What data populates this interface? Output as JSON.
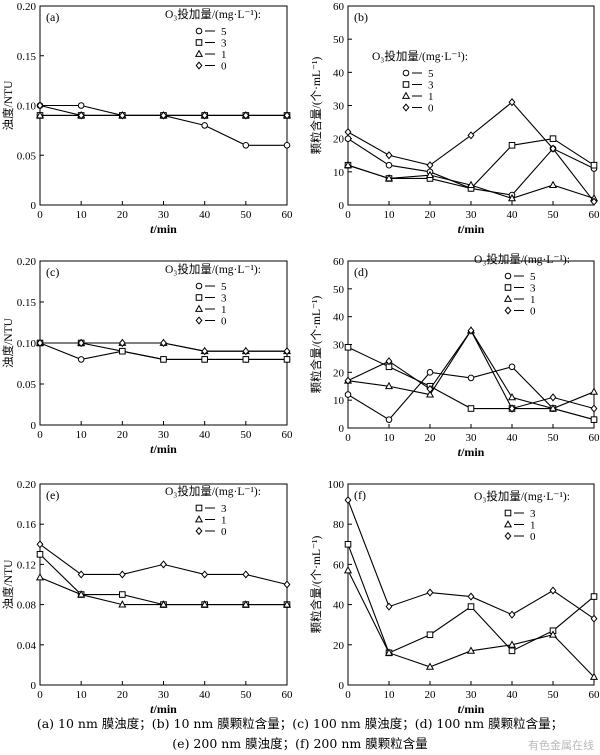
{
  "chart_data": [
    {
      "type": "line",
      "panel_label": "(a)",
      "ylabel": "浊度/NTU",
      "xlabel": "t/min",
      "ylim": [
        0,
        0.2
      ],
      "yticks": [
        "0",
        "0.05",
        "0.10",
        "0.15",
        "0.20"
      ],
      "ytick_values": [
        0,
        0.05,
        0.1,
        0.15,
        0.2
      ],
      "xlim": [
        0,
        60
      ],
      "xticks": [
        "0",
        "10",
        "20",
        "30",
        "40",
        "50",
        "60"
      ],
      "legend_title": "O₃投加量/(mg·L⁻¹):",
      "series": [
        {
          "name": "5",
          "marker": "circle",
          "x": [
            0,
            10,
            20,
            30,
            40,
            50,
            60
          ],
          "y": [
            0.1,
            0.1,
            0.09,
            0.09,
            0.08,
            0.06,
            0.06
          ]
        },
        {
          "name": "3",
          "marker": "square",
          "x": [
            0,
            10,
            20,
            30,
            40,
            50,
            60
          ],
          "y": [
            0.09,
            0.09,
            0.09,
            0.09,
            0.09,
            0.09,
            0.09
          ]
        },
        {
          "name": "1",
          "marker": "triangle",
          "x": [
            0,
            10,
            20,
            30,
            40,
            50,
            60
          ],
          "y": [
            0.09,
            0.09,
            0.09,
            0.09,
            0.09,
            0.09,
            0.09
          ]
        },
        {
          "name": "0",
          "marker": "diamond",
          "x": [
            0,
            10,
            20,
            30,
            40,
            50,
            60
          ],
          "y": [
            0.1,
            0.09,
            0.09,
            0.09,
            0.09,
            0.09,
            0.09
          ]
        }
      ]
    },
    {
      "type": "line",
      "panel_label": "(b)",
      "ylabel": "颗粒含量/(个·mL⁻¹)",
      "xlabel": "t/min",
      "ylim": [
        0,
        60
      ],
      "yticks": [
        "0",
        "10",
        "20",
        "30",
        "40",
        "50",
        "60"
      ],
      "ytick_values": [
        0,
        10,
        20,
        30,
        40,
        50,
        60
      ],
      "xlim": [
        0,
        60
      ],
      "xticks": [
        "0",
        "10",
        "20",
        "30",
        "40",
        "50",
        "60"
      ],
      "legend_title": "O₃投加量/(mg·L⁻¹):",
      "series": [
        {
          "name": "5",
          "marker": "circle",
          "x": [
            0,
            10,
            20,
            30,
            40,
            50,
            60
          ],
          "y": [
            20,
            12,
            10,
            5,
            3,
            17,
            11
          ]
        },
        {
          "name": "3",
          "marker": "square",
          "x": [
            0,
            10,
            20,
            30,
            40,
            50,
            60
          ],
          "y": [
            12,
            8,
            8,
            5,
            18,
            20,
            12
          ]
        },
        {
          "name": "1",
          "marker": "triangle",
          "x": [
            0,
            10,
            20,
            30,
            40,
            50,
            60
          ],
          "y": [
            12,
            8,
            9,
            6,
            2,
            6,
            2
          ]
        },
        {
          "name": "0",
          "marker": "diamond",
          "x": [
            0,
            10,
            20,
            30,
            40,
            50,
            60
          ],
          "y": [
            22,
            15,
            12,
            21,
            31,
            17,
            1
          ]
        }
      ]
    },
    {
      "type": "line",
      "panel_label": "(c)",
      "ylabel": "浊度/NTU",
      "xlabel": "t/min",
      "ylim": [
        0,
        0.2
      ],
      "yticks": [
        "0",
        "0.05",
        "0.10",
        "0.15",
        "0.20"
      ],
      "ytick_values": [
        0,
        0.05,
        0.1,
        0.15,
        0.2
      ],
      "xlim": [
        0,
        60
      ],
      "xticks": [
        "0",
        "10",
        "20",
        "30",
        "40",
        "50",
        "60"
      ],
      "legend_title": "O₃投加量/(mg·L⁻¹):",
      "series": [
        {
          "name": "5",
          "marker": "circle",
          "x": [
            0,
            10,
            20,
            30,
            40,
            50,
            60
          ],
          "y": [
            0.1,
            0.08,
            0.09,
            0.08,
            0.08,
            0.08,
            0.08
          ]
        },
        {
          "name": "3",
          "marker": "square",
          "x": [
            0,
            10,
            20,
            30,
            40,
            50,
            60
          ],
          "y": [
            0.1,
            0.1,
            0.09,
            0.08,
            0.08,
            0.08,
            0.08
          ]
        },
        {
          "name": "1",
          "marker": "triangle",
          "x": [
            0,
            10,
            20,
            30,
            40,
            50,
            60
          ],
          "y": [
            0.1,
            0.1,
            0.1,
            0.1,
            0.09,
            0.09,
            0.09
          ]
        },
        {
          "name": "0",
          "marker": "diamond",
          "x": [
            0,
            10,
            20,
            30,
            40,
            50,
            60
          ],
          "y": [
            0.1,
            0.1,
            0.1,
            0.1,
            0.09,
            0.09,
            0.09
          ]
        }
      ]
    },
    {
      "type": "line",
      "panel_label": "(d)",
      "ylabel": "颗粒含量/(个·mL⁻¹)",
      "xlabel": "t/min",
      "ylim": [
        0,
        60
      ],
      "yticks": [
        "0",
        "10",
        "20",
        "30",
        "40",
        "50",
        "60"
      ],
      "ytick_values": [
        0,
        10,
        20,
        30,
        40,
        50,
        60
      ],
      "xlim": [
        0,
        60
      ],
      "xticks": [
        "0",
        "10",
        "20",
        "30",
        "40",
        "50",
        "60"
      ],
      "legend_title": "O₃投加量/(mg·L⁻¹):",
      "series": [
        {
          "name": "5",
          "marker": "circle",
          "x": [
            0,
            10,
            20,
            30,
            40,
            50,
            60
          ],
          "y": [
            12,
            3,
            20,
            18,
            22,
            7,
            3
          ]
        },
        {
          "name": "3",
          "marker": "square",
          "x": [
            0,
            10,
            20,
            30,
            40,
            50,
            60
          ],
          "y": [
            29,
            22,
            15,
            7,
            7,
            7,
            3
          ]
        },
        {
          "name": "1",
          "marker": "triangle",
          "x": [
            0,
            10,
            20,
            30,
            40,
            50,
            60
          ],
          "y": [
            17,
            15,
            12,
            35,
            11,
            7,
            13
          ]
        },
        {
          "name": "0",
          "marker": "diamond",
          "x": [
            0,
            10,
            20,
            30,
            40,
            50,
            60
          ],
          "y": [
            17,
            24,
            14,
            35,
            7,
            11,
            7
          ]
        }
      ]
    },
    {
      "type": "line",
      "panel_label": "(e)",
      "ylabel": "浊度/NTU",
      "xlabel": "t/min",
      "ylim": [
        0,
        0.2
      ],
      "yticks": [
        "0",
        "0.04",
        "0.08",
        "0.12",
        "0.16",
        "0.20"
      ],
      "ytick_values": [
        0,
        0.04,
        0.08,
        0.12,
        0.16,
        0.2
      ],
      "xlim": [
        0,
        60
      ],
      "xticks": [
        "0",
        "10",
        "20",
        "30",
        "40",
        "50",
        "60"
      ],
      "legend_title": "O₃投加量/(mg·L⁻¹):",
      "series": [
        {
          "name": "3",
          "marker": "square",
          "x": [
            0,
            10,
            20,
            30,
            40,
            50,
            60
          ],
          "y": [
            0.13,
            0.09,
            0.09,
            0.08,
            0.08,
            0.08,
            0.08
          ]
        },
        {
          "name": "1",
          "marker": "triangle",
          "x": [
            0,
            10,
            20,
            30,
            40,
            50,
            60
          ],
          "y": [
            0.107,
            0.09,
            0.08,
            0.08,
            0.08,
            0.08,
            0.08
          ]
        },
        {
          "name": "0",
          "marker": "diamond",
          "x": [
            0,
            10,
            20,
            30,
            40,
            50,
            60
          ],
          "y": [
            0.14,
            0.11,
            0.11,
            0.12,
            0.11,
            0.11,
            0.1
          ]
        }
      ]
    },
    {
      "type": "line",
      "panel_label": "(f)",
      "ylabel": "颗粒含量/(个·mL⁻¹)",
      "xlabel": "t/min",
      "ylim": [
        0,
        100
      ],
      "yticks": [
        "0",
        "20",
        "40",
        "60",
        "80",
        "100"
      ],
      "ytick_values": [
        0,
        20,
        40,
        60,
        80,
        100
      ],
      "xlim": [
        0,
        60
      ],
      "xticks": [
        "0",
        "10",
        "20",
        "30",
        "40",
        "50",
        "60"
      ],
      "legend_title": "O₃投加量/(mg·L⁻¹):",
      "series": [
        {
          "name": "3",
          "marker": "square",
          "x": [
            0,
            10,
            20,
            30,
            40,
            50,
            60
          ],
          "y": [
            70,
            16,
            25,
            39,
            17,
            27,
            44
          ]
        },
        {
          "name": "1",
          "marker": "triangle",
          "x": [
            0,
            10,
            20,
            30,
            40,
            50,
            60
          ],
          "y": [
            57,
            16,
            9,
            17,
            20,
            25,
            4
          ]
        },
        {
          "name": "0",
          "marker": "diamond",
          "x": [
            0,
            10,
            20,
            30,
            40,
            50,
            60
          ],
          "y": [
            92,
            39,
            46,
            44,
            35,
            47,
            33
          ]
        }
      ]
    }
  ],
  "caption": {
    "line1": "(a) 10 nm 膜浊度；(b) 10 nm 膜颗粒含量；(c) 100 nm 膜浊度；(d) 100 nm 膜颗粒含量；",
    "line2": "(e) 200 nm 膜浊度；(f) 200 nm 膜颗粒含量"
  },
  "watermark": "有色金属在线"
}
